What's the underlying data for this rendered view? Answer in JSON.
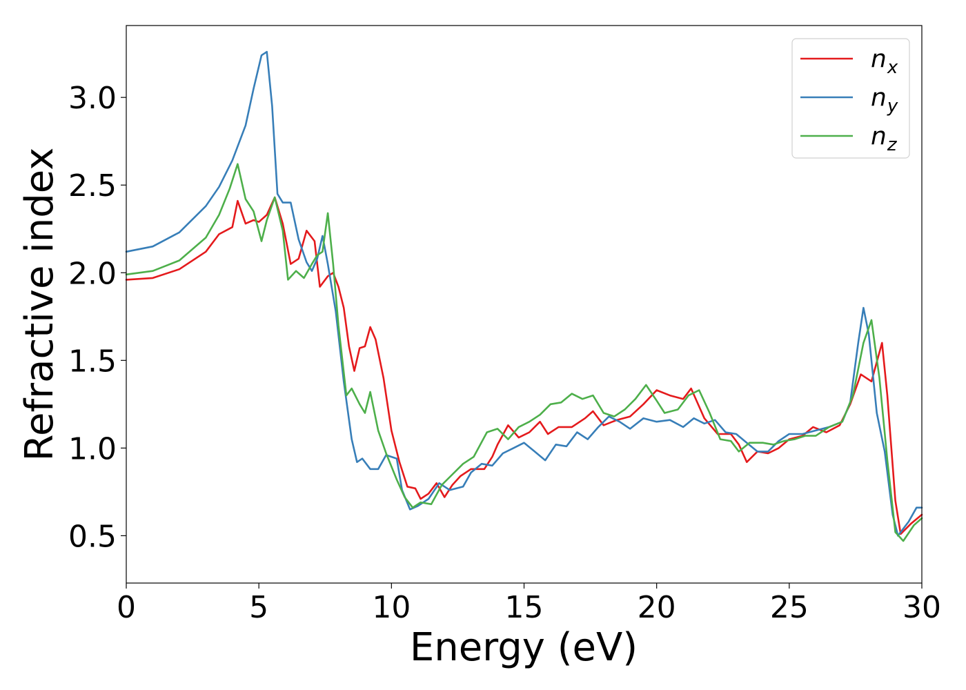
{
  "chart_data": {
    "type": "line",
    "xlabel": "Energy (eV)",
    "ylabel": "Refractive index",
    "xlim": [
      0,
      30
    ],
    "ylim": [
      0.23,
      3.41
    ],
    "x_ticks": [
      "0",
      "5",
      "10",
      "15",
      "20",
      "25",
      "30"
    ],
    "y_ticks": [
      "0.5",
      "1.0",
      "1.5",
      "2.0",
      "2.5",
      "3.0"
    ],
    "x_tick_values": [
      0,
      5,
      10,
      15,
      20,
      25,
      30
    ],
    "y_tick_values": [
      0.5,
      1.0,
      1.5,
      2.0,
      2.5,
      3.0
    ],
    "grid": false,
    "legend_position": "top-right",
    "series": [
      {
        "name": "n",
        "subscript": "x",
        "color": "#e41a1c",
        "points": [
          [
            0,
            1.96
          ],
          [
            1,
            1.97
          ],
          [
            2,
            2.02
          ],
          [
            3,
            2.12
          ],
          [
            3.5,
            2.22
          ],
          [
            4.0,
            2.26
          ],
          [
            4.2,
            2.41
          ],
          [
            4.5,
            2.28
          ],
          [
            4.8,
            2.3
          ],
          [
            5.0,
            2.29
          ],
          [
            5.3,
            2.33
          ],
          [
            5.6,
            2.43
          ],
          [
            5.9,
            2.28
          ],
          [
            6.2,
            2.05
          ],
          [
            6.5,
            2.08
          ],
          [
            6.8,
            2.24
          ],
          [
            7.1,
            2.18
          ],
          [
            7.3,
            1.92
          ],
          [
            7.6,
            1.98
          ],
          [
            7.8,
            2.0
          ],
          [
            8.0,
            1.92
          ],
          [
            8.2,
            1.8
          ],
          [
            8.4,
            1.58
          ],
          [
            8.6,
            1.44
          ],
          [
            8.8,
            1.57
          ],
          [
            9.0,
            1.58
          ],
          [
            9.2,
            1.69
          ],
          [
            9.4,
            1.62
          ],
          [
            9.7,
            1.4
          ],
          [
            10.0,
            1.1
          ],
          [
            10.3,
            0.92
          ],
          [
            10.6,
            0.78
          ],
          [
            10.9,
            0.77
          ],
          [
            11.1,
            0.71
          ],
          [
            11.4,
            0.74
          ],
          [
            11.7,
            0.8
          ],
          [
            12.0,
            0.72
          ],
          [
            12.3,
            0.79
          ],
          [
            12.6,
            0.84
          ],
          [
            13.0,
            0.88
          ],
          [
            13.5,
            0.88
          ],
          [
            13.8,
            0.95
          ],
          [
            14.0,
            1.02
          ],
          [
            14.4,
            1.13
          ],
          [
            14.8,
            1.06
          ],
          [
            15.2,
            1.09
          ],
          [
            15.6,
            1.15
          ],
          [
            15.9,
            1.08
          ],
          [
            16.3,
            1.12
          ],
          [
            16.8,
            1.12
          ],
          [
            17.3,
            1.17
          ],
          [
            17.6,
            1.21
          ],
          [
            18.0,
            1.13
          ],
          [
            18.5,
            1.16
          ],
          [
            19.0,
            1.18
          ],
          [
            19.5,
            1.25
          ],
          [
            20.0,
            1.33
          ],
          [
            20.5,
            1.3
          ],
          [
            21.0,
            1.28
          ],
          [
            21.3,
            1.34
          ],
          [
            21.8,
            1.17
          ],
          [
            22.3,
            1.08
          ],
          [
            22.8,
            1.08
          ],
          [
            23.1,
            1.02
          ],
          [
            23.4,
            0.92
          ],
          [
            23.8,
            0.98
          ],
          [
            24.2,
            0.97
          ],
          [
            24.6,
            1.0
          ],
          [
            25.0,
            1.05
          ],
          [
            25.5,
            1.07
          ],
          [
            25.9,
            1.12
          ],
          [
            26.4,
            1.09
          ],
          [
            26.9,
            1.13
          ],
          [
            27.3,
            1.25
          ],
          [
            27.7,
            1.42
          ],
          [
            28.1,
            1.38
          ],
          [
            28.5,
            1.6
          ],
          [
            28.7,
            1.3
          ],
          [
            29.0,
            0.7
          ],
          [
            29.2,
            0.51
          ],
          [
            29.6,
            0.57
          ],
          [
            30,
            0.62
          ]
        ]
      },
      {
        "name": "n",
        "subscript": "y",
        "color": "#377eb8",
        "points": [
          [
            0,
            2.12
          ],
          [
            1,
            2.15
          ],
          [
            2,
            2.23
          ],
          [
            3,
            2.38
          ],
          [
            3.5,
            2.49
          ],
          [
            4.0,
            2.64
          ],
          [
            4.5,
            2.84
          ],
          [
            4.8,
            3.05
          ],
          [
            5.1,
            3.24
          ],
          [
            5.3,
            3.26
          ],
          [
            5.5,
            2.95
          ],
          [
            5.7,
            2.45
          ],
          [
            5.9,
            2.4
          ],
          [
            6.2,
            2.4
          ],
          [
            6.5,
            2.19
          ],
          [
            6.8,
            2.06
          ],
          [
            7.0,
            2.01
          ],
          [
            7.2,
            2.08
          ],
          [
            7.4,
            2.21
          ],
          [
            7.6,
            2.05
          ],
          [
            7.9,
            1.78
          ],
          [
            8.2,
            1.38
          ],
          [
            8.5,
            1.05
          ],
          [
            8.7,
            0.92
          ],
          [
            8.9,
            0.94
          ],
          [
            9.2,
            0.88
          ],
          [
            9.5,
            0.88
          ],
          [
            9.8,
            0.96
          ],
          [
            10.2,
            0.94
          ],
          [
            10.4,
            0.76
          ],
          [
            10.7,
            0.65
          ],
          [
            11.0,
            0.67
          ],
          [
            11.4,
            0.71
          ],
          [
            11.8,
            0.8
          ],
          [
            12.2,
            0.76
          ],
          [
            12.7,
            0.78
          ],
          [
            13.0,
            0.86
          ],
          [
            13.4,
            0.91
          ],
          [
            13.8,
            0.9
          ],
          [
            14.2,
            0.97
          ],
          [
            14.6,
            1.0
          ],
          [
            15.0,
            1.03
          ],
          [
            15.4,
            0.98
          ],
          [
            15.8,
            0.93
          ],
          [
            16.2,
            1.02
          ],
          [
            16.6,
            1.01
          ],
          [
            17.0,
            1.09
          ],
          [
            17.4,
            1.05
          ],
          [
            17.8,
            1.12
          ],
          [
            18.2,
            1.18
          ],
          [
            18.6,
            1.15
          ],
          [
            19.0,
            1.11
          ],
          [
            19.5,
            1.17
          ],
          [
            20.0,
            1.15
          ],
          [
            20.5,
            1.16
          ],
          [
            21.0,
            1.12
          ],
          [
            21.4,
            1.17
          ],
          [
            21.8,
            1.14
          ],
          [
            22.2,
            1.16
          ],
          [
            22.6,
            1.09
          ],
          [
            23.0,
            1.08
          ],
          [
            23.4,
            1.03
          ],
          [
            23.8,
            0.98
          ],
          [
            24.2,
            0.98
          ],
          [
            24.6,
            1.04
          ],
          [
            25.0,
            1.08
          ],
          [
            25.5,
            1.08
          ],
          [
            26.0,
            1.1
          ],
          [
            26.5,
            1.12
          ],
          [
            27.0,
            1.15
          ],
          [
            27.3,
            1.26
          ],
          [
            27.6,
            1.6
          ],
          [
            27.8,
            1.8
          ],
          [
            28.0,
            1.65
          ],
          [
            28.3,
            1.2
          ],
          [
            28.6,
            0.98
          ],
          [
            28.9,
            0.62
          ],
          [
            29.1,
            0.5
          ],
          [
            29.5,
            0.58
          ],
          [
            29.8,
            0.66
          ],
          [
            30,
            0.66
          ]
        ]
      },
      {
        "name": "n",
        "subscript": "z",
        "color": "#4daf4a",
        "points": [
          [
            0,
            1.99
          ],
          [
            1,
            2.01
          ],
          [
            2,
            2.07
          ],
          [
            3,
            2.2
          ],
          [
            3.5,
            2.33
          ],
          [
            3.9,
            2.48
          ],
          [
            4.2,
            2.62
          ],
          [
            4.5,
            2.42
          ],
          [
            4.8,
            2.35
          ],
          [
            5.1,
            2.18
          ],
          [
            5.3,
            2.3
          ],
          [
            5.6,
            2.43
          ],
          [
            5.9,
            2.24
          ],
          [
            6.1,
            1.96
          ],
          [
            6.4,
            2.01
          ],
          [
            6.7,
            1.97
          ],
          [
            7.0,
            2.05
          ],
          [
            7.2,
            2.1
          ],
          [
            7.4,
            2.12
          ],
          [
            7.6,
            2.34
          ],
          [
            7.8,
            2.05
          ],
          [
            8.0,
            1.7
          ],
          [
            8.3,
            1.3
          ],
          [
            8.5,
            1.34
          ],
          [
            8.8,
            1.25
          ],
          [
            9.0,
            1.2
          ],
          [
            9.2,
            1.32
          ],
          [
            9.5,
            1.1
          ],
          [
            9.8,
            0.97
          ],
          [
            10.2,
            0.82
          ],
          [
            10.5,
            0.72
          ],
          [
            10.8,
            0.66
          ],
          [
            11.1,
            0.69
          ],
          [
            11.5,
            0.68
          ],
          [
            11.9,
            0.79
          ],
          [
            12.3,
            0.85
          ],
          [
            12.7,
            0.91
          ],
          [
            13.1,
            0.95
          ],
          [
            13.6,
            1.09
          ],
          [
            14.0,
            1.11
          ],
          [
            14.4,
            1.05
          ],
          [
            14.8,
            1.12
          ],
          [
            15.2,
            1.15
          ],
          [
            15.6,
            1.19
          ],
          [
            16.0,
            1.25
          ],
          [
            16.4,
            1.26
          ],
          [
            16.8,
            1.31
          ],
          [
            17.2,
            1.28
          ],
          [
            17.6,
            1.3
          ],
          [
            18.0,
            1.2
          ],
          [
            18.4,
            1.18
          ],
          [
            18.8,
            1.22
          ],
          [
            19.2,
            1.28
          ],
          [
            19.6,
            1.36
          ],
          [
            20.0,
            1.27
          ],
          [
            20.3,
            1.2
          ],
          [
            20.8,
            1.22
          ],
          [
            21.2,
            1.3
          ],
          [
            21.6,
            1.33
          ],
          [
            22.0,
            1.2
          ],
          [
            22.4,
            1.05
          ],
          [
            22.8,
            1.04
          ],
          [
            23.1,
            0.98
          ],
          [
            23.5,
            1.03
          ],
          [
            24.0,
            1.03
          ],
          [
            24.4,
            1.02
          ],
          [
            24.8,
            1.04
          ],
          [
            25.2,
            1.05
          ],
          [
            25.6,
            1.07
          ],
          [
            26.0,
            1.07
          ],
          [
            26.5,
            1.12
          ],
          [
            27.0,
            1.15
          ],
          [
            27.4,
            1.3
          ],
          [
            27.8,
            1.6
          ],
          [
            28.1,
            1.73
          ],
          [
            28.4,
            1.4
          ],
          [
            28.7,
            0.93
          ],
          [
            29.0,
            0.52
          ],
          [
            29.3,
            0.47
          ],
          [
            29.7,
            0.56
          ],
          [
            30,
            0.6
          ]
        ]
      }
    ]
  }
}
